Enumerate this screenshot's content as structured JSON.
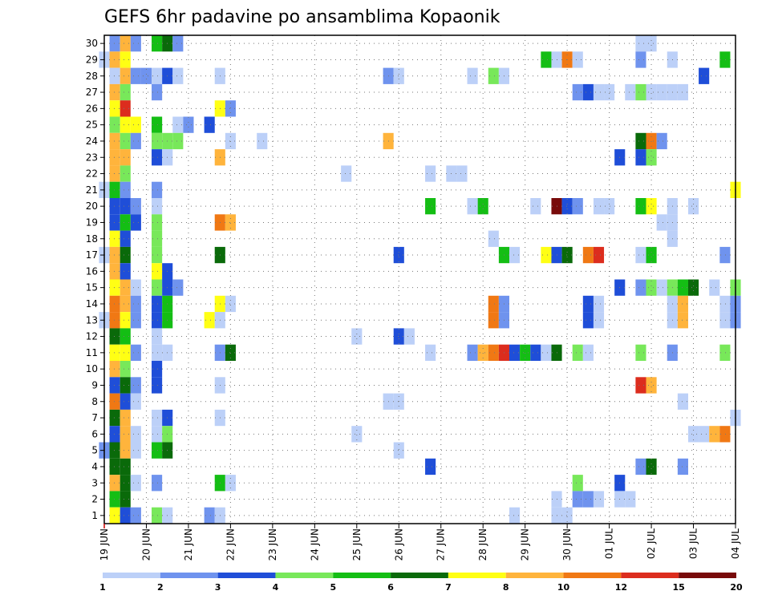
{
  "chart_data": {
    "type": "heatmap",
    "title": "GEFS 6hr padavine po ansamblima Kopaonik",
    "x_tick_labels": [
      "19 JUN",
      "20 JUN",
      "21 JUN",
      "22 JUN",
      "23 JUN",
      "24 JUN",
      "25 JUN",
      "26 JUN",
      "27 JUN",
      "28 JUN",
      "29 JUN",
      "30 JUN",
      "01 JUL",
      "02 JUL",
      "03 JUL",
      "04 JUL"
    ],
    "y_tick_labels": [
      "1",
      "2",
      "3",
      "4",
      "5",
      "6",
      "7",
      "8",
      "9",
      "10",
      "11",
      "12",
      "13",
      "14",
      "15",
      "16",
      "17",
      "18",
      "19",
      "20",
      "21",
      "22",
      "23",
      "24",
      "25",
      "26",
      "27",
      "28",
      "29",
      "30"
    ],
    "x_range_days": [
      0,
      15
    ],
    "y_range_members": [
      0,
      30
    ],
    "time_step_hours": 6,
    "grid": true,
    "colorbar": {
      "position": "bottom",
      "colors": [
        "#bcd0f8",
        "#6f93ee",
        "#1f4ed8",
        "#78e85a",
        "#14be14",
        "#0a6a0a",
        "#ffff14",
        "#ffb43c",
        "#f07814",
        "#dc2d1e",
        "#780a0a"
      ],
      "labels": [
        "1",
        "2",
        "3",
        "4",
        "5",
        "6",
        "7",
        "8",
        "10",
        "12",
        "15",
        "20"
      ]
    },
    "cells": [
      [
        30,
        [
          [
            0.25,
            2
          ],
          [
            0.5,
            8
          ],
          [
            0.75,
            2
          ],
          [
            1.25,
            5
          ],
          [
            1.5,
            6
          ],
          [
            1.75,
            2
          ],
          [
            12.75,
            1
          ],
          [
            13,
            1
          ]
        ]
      ],
      [
        29,
        [
          [
            0,
            1
          ],
          [
            0.25,
            8
          ],
          [
            0.5,
            7
          ],
          [
            10.5,
            5
          ],
          [
            10.75,
            1
          ],
          [
            11,
            9
          ],
          [
            11.25,
            1
          ],
          [
            12.75,
            2
          ],
          [
            13.5,
            1
          ],
          [
            14.75,
            5
          ]
        ]
      ],
      [
        28,
        [
          [
            0.25,
            1
          ],
          [
            0.5,
            8
          ],
          [
            0.75,
            2
          ],
          [
            1,
            2
          ],
          [
            1.25,
            1
          ],
          [
            1.5,
            3
          ],
          [
            1.75,
            1
          ],
          [
            2.75,
            1
          ],
          [
            6.75,
            2
          ],
          [
            7,
            1
          ],
          [
            8.75,
            1
          ],
          [
            9.25,
            4
          ],
          [
            9.5,
            1
          ],
          [
            14.25,
            3
          ]
        ]
      ],
      [
        27,
        [
          [
            0.25,
            8
          ],
          [
            0.5,
            4
          ],
          [
            1.25,
            2
          ],
          [
            11.25,
            2
          ],
          [
            11.5,
            3
          ],
          [
            11.75,
            1
          ],
          [
            12,
            1
          ],
          [
            12.5,
            1
          ],
          [
            12.75,
            4
          ],
          [
            13,
            1
          ],
          [
            13.25,
            1
          ],
          [
            13.5,
            1
          ],
          [
            13.75,
            1
          ]
        ]
      ],
      [
        26,
        [
          [
            0.25,
            7
          ],
          [
            0.5,
            10
          ],
          [
            2.75,
            7
          ],
          [
            3,
            2
          ]
        ]
      ],
      [
        25,
        [
          [
            0.25,
            4
          ],
          [
            0.5,
            7
          ],
          [
            0.75,
            7
          ],
          [
            1.25,
            5
          ],
          [
            1.75,
            1
          ],
          [
            2,
            2
          ],
          [
            2.5,
            3
          ]
        ]
      ],
      [
        24,
        [
          [
            0.25,
            8
          ],
          [
            0.5,
            4
          ],
          [
            0.75,
            2
          ],
          [
            1.25,
            4
          ],
          [
            1.5,
            4
          ],
          [
            1.75,
            4
          ],
          [
            3,
            1
          ],
          [
            3.75,
            1
          ],
          [
            6.75,
            8
          ],
          [
            12.75,
            6
          ],
          [
            13,
            9
          ],
          [
            13.25,
            2
          ]
        ]
      ],
      [
        23,
        [
          [
            0.25,
            8
          ],
          [
            0.5,
            8
          ],
          [
            1.25,
            3
          ],
          [
            1.5,
            1
          ],
          [
            2.75,
            8
          ],
          [
            12.25,
            3
          ],
          [
            12.75,
            3
          ],
          [
            13,
            4
          ]
        ]
      ],
      [
        22,
        [
          [
            0.25,
            8
          ],
          [
            0.5,
            4
          ],
          [
            5.75,
            1
          ],
          [
            7.75,
            1
          ],
          [
            8.25,
            1
          ],
          [
            8.5,
            1
          ]
        ]
      ],
      [
        21,
        [
          [
            0,
            1
          ],
          [
            0.25,
            5
          ],
          [
            0.5,
            2
          ],
          [
            1.25,
            2
          ],
          [
            15,
            7
          ]
        ]
      ],
      [
        20,
        [
          [
            0.25,
            3
          ],
          [
            0.5,
            3
          ],
          [
            0.75,
            2
          ],
          [
            1.25,
            1
          ],
          [
            7.75,
            5
          ],
          [
            8.75,
            1
          ],
          [
            9,
            5
          ],
          [
            10.25,
            1
          ],
          [
            10.75,
            11
          ],
          [
            11,
            3
          ],
          [
            11.25,
            2
          ],
          [
            11.75,
            1
          ],
          [
            12,
            1
          ],
          [
            12.75,
            5
          ],
          [
            13,
            7
          ],
          [
            13.5,
            1
          ],
          [
            14,
            1
          ]
        ]
      ],
      [
        19,
        [
          [
            0.25,
            3
          ],
          [
            0.5,
            5
          ],
          [
            0.75,
            3
          ],
          [
            1.25,
            4
          ],
          [
            2.75,
            9
          ],
          [
            3,
            8
          ],
          [
            13.25,
            1
          ],
          [
            13.5,
            1
          ]
        ]
      ],
      [
        18,
        [
          [
            0.25,
            7
          ],
          [
            0.5,
            3
          ],
          [
            1.25,
            4
          ],
          [
            9.25,
            1
          ],
          [
            13.5,
            1
          ]
        ]
      ],
      [
        17,
        [
          [
            0,
            1
          ],
          [
            0.25,
            8
          ],
          [
            0.5,
            6
          ],
          [
            1.25,
            4
          ],
          [
            2.75,
            6
          ],
          [
            7,
            3
          ],
          [
            9.5,
            5
          ],
          [
            9.75,
            1
          ],
          [
            10.5,
            7
          ],
          [
            10.75,
            3
          ],
          [
            11,
            6
          ],
          [
            11.5,
            9
          ],
          [
            11.75,
            10
          ],
          [
            12.75,
            1
          ],
          [
            13,
            5
          ],
          [
            14.75,
            2
          ]
        ]
      ],
      [
        16,
        [
          [
            0.25,
            8
          ],
          [
            0.5,
            3
          ],
          [
            1.25,
            7
          ],
          [
            1.5,
            3
          ]
        ]
      ],
      [
        15,
        [
          [
            0.25,
            7
          ],
          [
            0.5,
            8
          ],
          [
            0.75,
            1
          ],
          [
            1.25,
            4
          ],
          [
            1.5,
            3
          ],
          [
            1.75,
            2
          ],
          [
            12.25,
            3
          ],
          [
            12.75,
            2
          ],
          [
            13,
            4
          ],
          [
            13.25,
            1
          ],
          [
            13.5,
            4
          ],
          [
            13.75,
            5
          ],
          [
            14,
            6
          ],
          [
            14.5,
            1
          ],
          [
            15,
            4
          ]
        ]
      ],
      [
        14,
        [
          [
            0.25,
            9
          ],
          [
            0.5,
            8
          ],
          [
            0.75,
            2
          ],
          [
            1.25,
            3
          ],
          [
            1.5,
            5
          ],
          [
            2.75,
            7
          ],
          [
            3,
            1
          ],
          [
            9.25,
            9
          ],
          [
            9.5,
            2
          ],
          [
            11.5,
            3
          ],
          [
            11.75,
            1
          ],
          [
            13.5,
            1
          ],
          [
            13.75,
            8
          ],
          [
            14.75,
            1
          ],
          [
            15,
            2
          ]
        ]
      ],
      [
        13,
        [
          [
            0,
            1
          ],
          [
            0.25,
            9
          ],
          [
            0.5,
            7
          ],
          [
            0.75,
            2
          ],
          [
            1.25,
            3
          ],
          [
            1.5,
            5
          ],
          [
            2.5,
            7
          ],
          [
            2.75,
            1
          ],
          [
            9.25,
            9
          ],
          [
            9.5,
            2
          ],
          [
            11.5,
            3
          ],
          [
            11.75,
            1
          ],
          [
            13.5,
            1
          ],
          [
            13.75,
            8
          ],
          [
            14.75,
            1
          ],
          [
            15,
            2
          ]
        ]
      ],
      [
        12,
        [
          [
            0.25,
            6
          ],
          [
            0.5,
            5
          ],
          [
            1.25,
            1
          ],
          [
            6,
            1
          ],
          [
            7,
            3
          ],
          [
            7.25,
            1
          ]
        ]
      ],
      [
        11,
        [
          [
            0.25,
            7
          ],
          [
            0.5,
            7
          ],
          [
            0.75,
            2
          ],
          [
            1.25,
            1
          ],
          [
            1.5,
            1
          ],
          [
            2.75,
            2
          ],
          [
            3,
            6
          ],
          [
            7.75,
            1
          ],
          [
            8.75,
            2
          ],
          [
            9,
            8
          ],
          [
            9.25,
            9
          ],
          [
            9.5,
            10
          ],
          [
            9.75,
            3
          ],
          [
            10,
            5
          ],
          [
            10.25,
            3
          ],
          [
            10.5,
            1
          ],
          [
            10.75,
            6
          ],
          [
            11.25,
            4
          ],
          [
            11.5,
            1
          ],
          [
            12.75,
            4
          ],
          [
            13.5,
            2
          ],
          [
            14.75,
            4
          ]
        ]
      ],
      [
        10,
        [
          [
            0.25,
            8
          ],
          [
            0.5,
            4
          ],
          [
            1.25,
            3
          ]
        ]
      ],
      [
        9,
        [
          [
            0.25,
            3
          ],
          [
            0.5,
            6
          ],
          [
            0.75,
            2
          ],
          [
            1.25,
            3
          ],
          [
            2.75,
            1
          ],
          [
            12.75,
            10
          ],
          [
            13,
            8
          ]
        ]
      ],
      [
        8,
        [
          [
            0.25,
            9
          ],
          [
            0.5,
            3
          ],
          [
            0.75,
            1
          ],
          [
            6.75,
            1
          ],
          [
            7,
            1
          ],
          [
            13.75,
            1
          ]
        ]
      ],
      [
        7,
        [
          [
            0.25,
            6
          ],
          [
            0.5,
            8
          ],
          [
            1.25,
            1
          ],
          [
            1.5,
            3
          ],
          [
            2.75,
            1
          ],
          [
            15,
            1
          ]
        ]
      ],
      [
        6,
        [
          [
            0.25,
            3
          ],
          [
            0.5,
            8
          ],
          [
            0.75,
            1
          ],
          [
            1.25,
            1
          ],
          [
            1.5,
            4
          ],
          [
            6,
            1
          ],
          [
            14,
            1
          ],
          [
            14.25,
            1
          ],
          [
            14.5,
            8
          ],
          [
            14.75,
            9
          ]
        ]
      ],
      [
        5,
        [
          [
            0,
            2
          ],
          [
            0.25,
            6
          ],
          [
            0.5,
            8
          ],
          [
            0.75,
            1
          ],
          [
            1.25,
            5
          ],
          [
            1.5,
            6
          ],
          [
            7,
            1
          ]
        ]
      ],
      [
        4,
        [
          [
            0.25,
            6
          ],
          [
            0.5,
            6
          ],
          [
            7.75,
            3
          ],
          [
            12.75,
            2
          ],
          [
            13,
            6
          ],
          [
            13.75,
            2
          ]
        ]
      ],
      [
        3,
        [
          [
            0.25,
            8
          ],
          [
            0.5,
            6
          ],
          [
            0.75,
            1
          ],
          [
            1.25,
            2
          ],
          [
            2.75,
            5
          ],
          [
            3,
            1
          ],
          [
            11.25,
            4
          ],
          [
            12.25,
            3
          ]
        ]
      ],
      [
        2,
        [
          [
            0.25,
            5
          ],
          [
            0.5,
            6
          ],
          [
            10.75,
            1
          ],
          [
            11.25,
            2
          ],
          [
            11.5,
            2
          ],
          [
            11.75,
            1
          ],
          [
            12.25,
            1
          ],
          [
            12.5,
            1
          ]
        ]
      ],
      [
        1,
        [
          [
            0.25,
            7
          ],
          [
            0.5,
            3
          ],
          [
            0.75,
            2
          ],
          [
            1.25,
            4
          ],
          [
            1.5,
            1
          ],
          [
            2.5,
            2
          ],
          [
            2.75,
            1
          ],
          [
            9.75,
            1
          ],
          [
            10.75,
            1
          ],
          [
            11,
            1
          ]
        ]
      ]
    ]
  }
}
